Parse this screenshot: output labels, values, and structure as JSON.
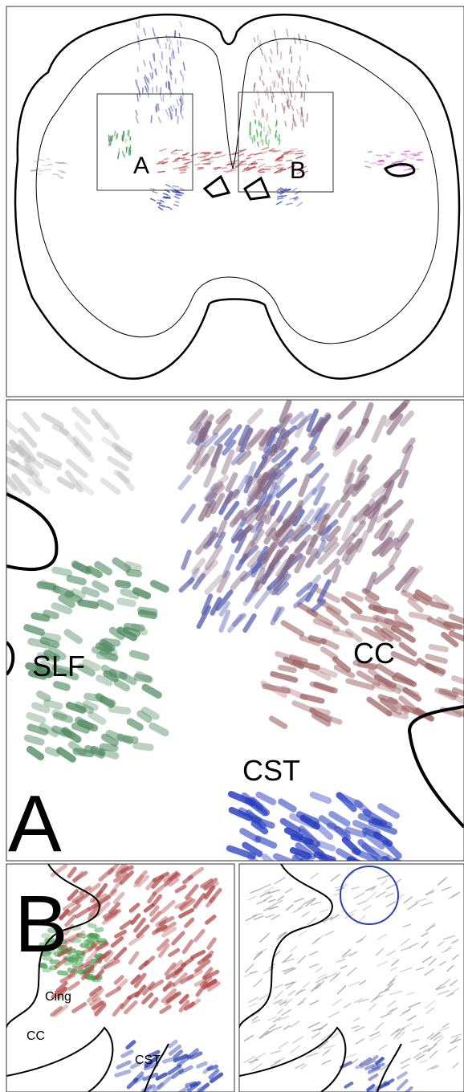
{
  "overview": {
    "box_labels": [
      "A",
      "B"
    ]
  },
  "panel_a": {
    "label": "A",
    "tracts": [
      "SLF",
      "CC",
      "CST"
    ]
  },
  "panel_b": {
    "label": "B",
    "tracts": [
      "Cing",
      "CC",
      "CST"
    ]
  }
}
